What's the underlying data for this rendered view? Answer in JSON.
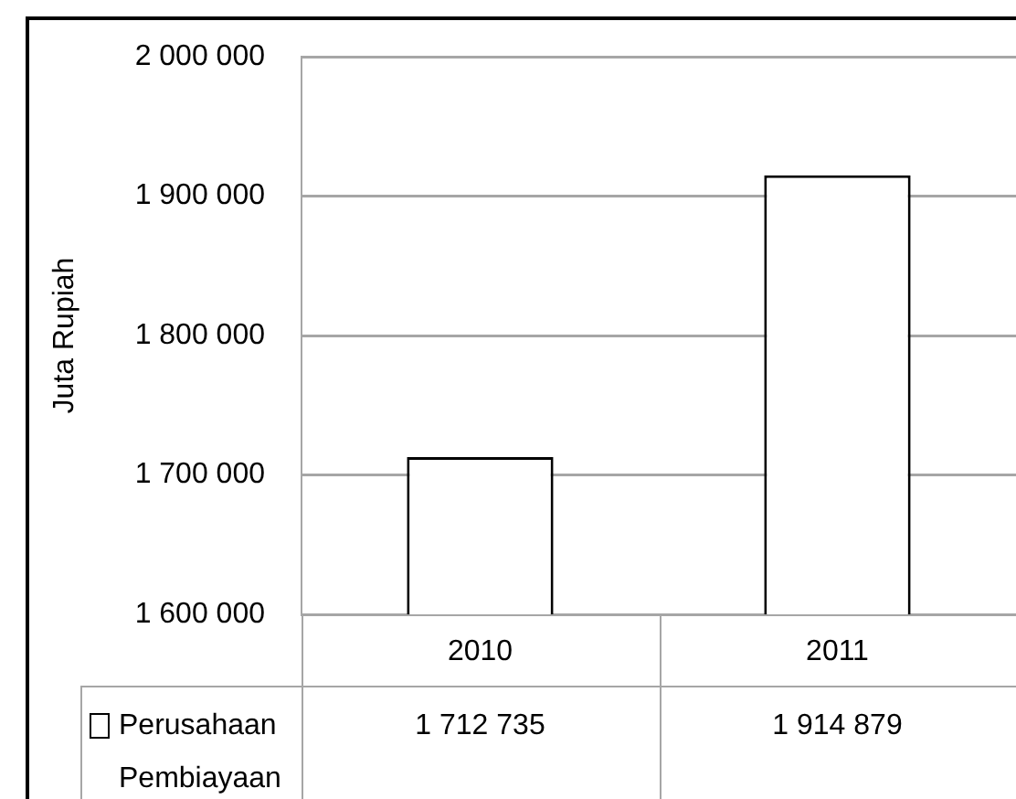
{
  "chart_data": {
    "type": "bar",
    "categories": [
      "2010",
      "2011"
    ],
    "series": [
      {
        "name": "Perusahaan Pembiayaan",
        "color": "#ffffff",
        "values": [
          1712735,
          1914879
        ],
        "value_labels": [
          "1 712 735",
          "1 914 879"
        ]
      }
    ],
    "ylabel": "Juta Rupiah",
    "ylim": [
      1600000,
      2000000
    ],
    "yticks": [
      {
        "value": 1600000,
        "label": "1 600 000"
      },
      {
        "value": 1700000,
        "label": "1 700 000"
      },
      {
        "value": 1800000,
        "label": "1 800 000"
      },
      {
        "value": 1900000,
        "label": "1 900 000"
      },
      {
        "value": 2000000,
        "label": "2 000 000"
      }
    ],
    "grid": "y",
    "legend": "bottom"
  }
}
